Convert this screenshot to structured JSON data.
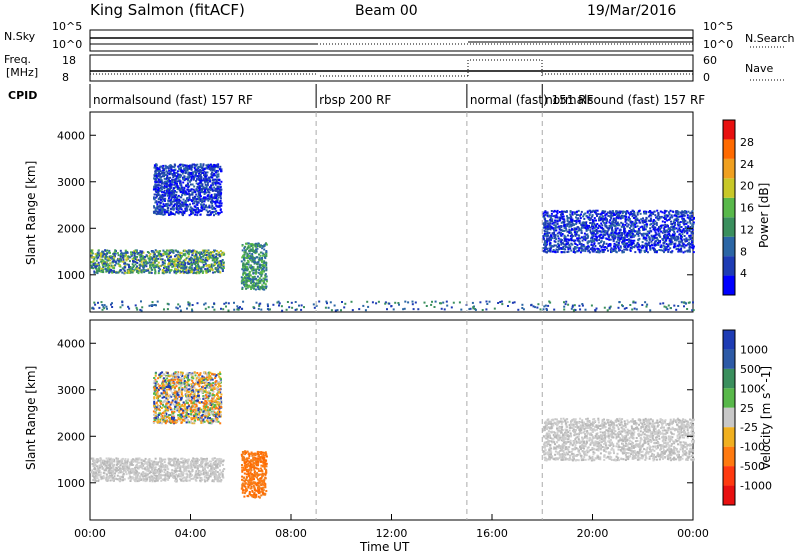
{
  "header": {
    "station": "King Salmon (fitACF)",
    "beam": "Beam 00",
    "date": "19/Mar/2016"
  },
  "noise_panel": {
    "left_label": "N.Sky",
    "right_label": "N.Search",
    "left_ticks": [
      "10^5",
      "10^0"
    ],
    "right_ticks": [
      "10^5",
      "10^0"
    ]
  },
  "freq_panel": {
    "left_label": "Freq.",
    "left_unit": "[MHz]",
    "right_label": "Nave",
    "left_ticks": [
      "18",
      "8"
    ],
    "right_ticks": [
      "60",
      "0"
    ]
  },
  "cpid": {
    "label": "CPID",
    "segments": [
      {
        "label": "normalsound (fast) 157 RF",
        "start_hour": 0,
        "end_hour": 9
      },
      {
        "label": "rbsp 200 RF",
        "start_hour": 9,
        "end_hour": 15
      },
      {
        "label": "normal (fast) 151 RF",
        "start_hour": 15,
        "end_hour": 18
      },
      {
        "label": "normalsound (fast) 157 RF",
        "start_hour": 18,
        "end_hour": 24
      }
    ]
  },
  "colors": {
    "power_scale": [
      "#0000ff",
      "#1e3cb4",
      "#2b66a5",
      "#3a8f5d",
      "#58b84a",
      "#c8c828",
      "#f0a020",
      "#ff6a00",
      "#e81010"
    ],
    "velocity_scale": [
      "#1e3cb4",
      "#2d5aa6",
      "#3a8f5d",
      "#58b84a",
      "#c8c8c8",
      "#f0b020",
      "#ff7a10",
      "#ff3a10",
      "#e81010"
    ]
  },
  "chart_data": [
    {
      "type": "heatmap",
      "panel": "power",
      "ylabel": "Slant Range [km]",
      "yticks": [
        "1000",
        "2000",
        "3000",
        "4000"
      ],
      "ylim": [
        200,
        4500
      ],
      "xlim": [
        0,
        24
      ],
      "colorbar_label": "Power [dB]",
      "colorbar_ticks": [
        "4",
        "8",
        "12",
        "16",
        "20",
        "24",
        "28"
      ],
      "colorbar_range": [
        0,
        30
      ],
      "regions": [
        {
          "hour_start": 0.0,
          "hour_end": 5.3,
          "range_start": 1050,
          "range_end": 1550,
          "level": "green"
        },
        {
          "hour_start": 2.5,
          "hour_end": 5.2,
          "range_start": 2300,
          "range_end": 3400,
          "level": "blue"
        },
        {
          "hour_start": 6.0,
          "hour_end": 7.0,
          "range_start": 700,
          "range_end": 1700,
          "level": "teal"
        },
        {
          "hour_start": 18.0,
          "hour_end": 24.0,
          "range_start": 1500,
          "range_end": 2400,
          "level": "blue"
        },
        {
          "hour_start": 0.0,
          "hour_end": 24.0,
          "range_start": 250,
          "range_end": 450,
          "level": "sparse"
        }
      ]
    },
    {
      "type": "heatmap",
      "panel": "velocity",
      "xlabel": "Time UT",
      "ylabel": "Slant Range [km]",
      "yticks": [
        "1000",
        "2000",
        "3000",
        "4000"
      ],
      "xticks": [
        "00:00",
        "04:00",
        "08:00",
        "12:00",
        "16:00",
        "20:00",
        "00:00"
      ],
      "ylim": [
        200,
        4500
      ],
      "xlim": [
        0,
        24
      ],
      "colorbar_label": "Velocity [m s^-1]",
      "colorbar_ticks": [
        "1000",
        "500",
        "100",
        "25",
        "-25",
        "-100",
        "-500",
        "-1000"
      ],
      "regions": [
        {
          "hour_start": 0.0,
          "hour_end": 5.3,
          "range_start": 1050,
          "range_end": 1550,
          "level": "grey"
        },
        {
          "hour_start": 2.5,
          "hour_end": 5.2,
          "range_start": 2300,
          "range_end": 3400,
          "level": "mixed"
        },
        {
          "hour_start": 6.0,
          "hour_end": 7.0,
          "range_start": 700,
          "range_end": 1700,
          "level": "orange"
        },
        {
          "hour_start": 18.0,
          "hour_end": 24.0,
          "range_start": 1500,
          "range_end": 2400,
          "level": "grey"
        }
      ]
    }
  ]
}
